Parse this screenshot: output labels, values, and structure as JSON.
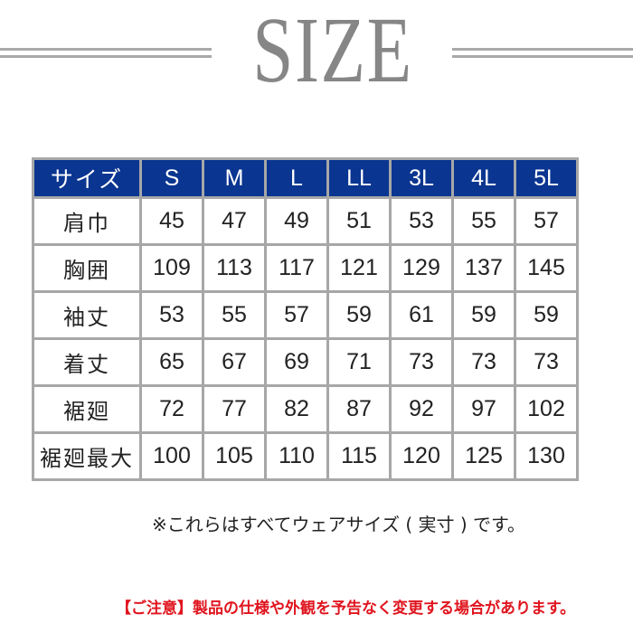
{
  "title": "SIZE",
  "colors": {
    "header_bg": "#0a3590",
    "border": "#a7a7a7",
    "title": "#868686",
    "warning": "#e0141e"
  },
  "table": {
    "headers": [
      "サイズ",
      "S",
      "M",
      "L",
      "LL",
      "3L",
      "4L",
      "5L"
    ],
    "rows": [
      {
        "label": "肩巾",
        "values": [
          "45",
          "47",
          "49",
          "51",
          "53",
          "55",
          "57"
        ]
      },
      {
        "label": "胸囲",
        "values": [
          "109",
          "113",
          "117",
          "121",
          "129",
          "137",
          "145"
        ]
      },
      {
        "label": "袖丈",
        "values": [
          "53",
          "55",
          "57",
          "59",
          "61",
          "59",
          "59"
        ]
      },
      {
        "label": "着丈",
        "values": [
          "65",
          "67",
          "69",
          "71",
          "73",
          "73",
          "73"
        ]
      },
      {
        "label": "裾廻",
        "values": [
          "72",
          "77",
          "82",
          "87",
          "92",
          "97",
          "102"
        ]
      },
      {
        "label": "裾廻最大",
        "values": [
          "100",
          "105",
          "110",
          "115",
          "120",
          "125",
          "130"
        ]
      }
    ]
  },
  "note": "※これらはすべてウェアサイズ ( 実寸 ) です。",
  "warning": "【ご注意】製品の仕様や外観を予告なく変更する場合があります。"
}
